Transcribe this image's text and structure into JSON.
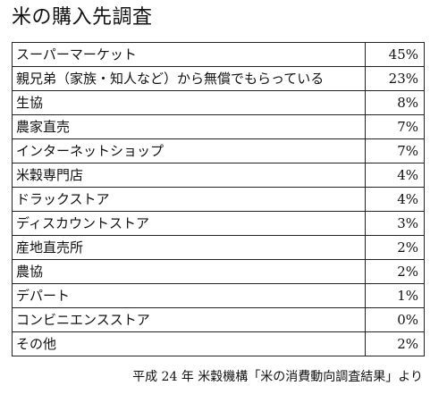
{
  "chart_data": {
    "type": "table",
    "title": "米の購入先調査",
    "rows": [
      {
        "label": "スーパーマーケット",
        "value": "45%"
      },
      {
        "label": "親兄弟（家族・知人など）から無償でもらっている",
        "value": "23%"
      },
      {
        "label": "生協",
        "value": "8%"
      },
      {
        "label": "農家直売",
        "value": "7%"
      },
      {
        "label": "インターネットショップ",
        "value": "7%"
      },
      {
        "label": "米穀専門店",
        "value": "4%"
      },
      {
        "label": "ドラックストア",
        "value": "4%"
      },
      {
        "label": "ディスカウントストア",
        "value": "3%"
      },
      {
        "label": "産地直売所",
        "value": "2%"
      },
      {
        "label": "農協",
        "value": "2%"
      },
      {
        "label": "デパート",
        "value": "1%"
      },
      {
        "label": "コンビニエンスストア",
        "value": "0%"
      },
      {
        "label": "その他",
        "value": "2%"
      }
    ],
    "source": "平成 24 年  米穀機構「米の消費動向調査結果」より"
  }
}
